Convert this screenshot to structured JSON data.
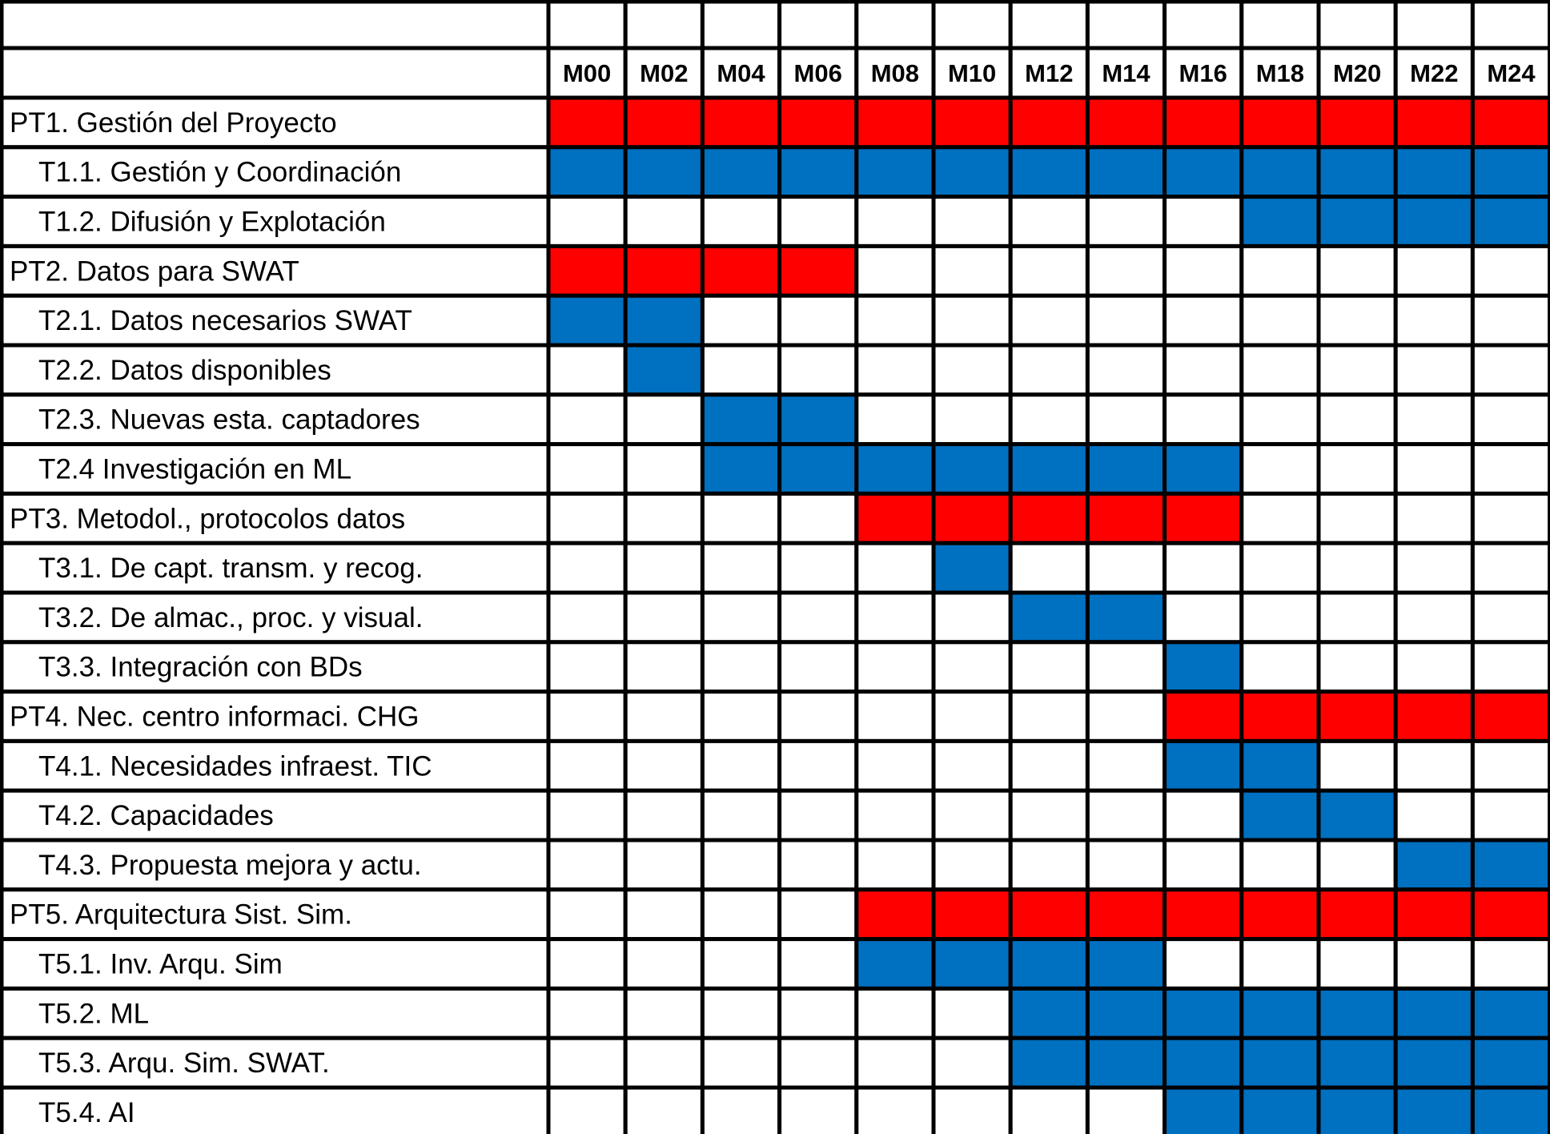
{
  "chart_data": {
    "type": "table",
    "columns": [
      "M00",
      "M02",
      "M04",
      "M06",
      "M08",
      "M10",
      "M12",
      "M14",
      "M16",
      "M18",
      "M20",
      "M22",
      "M24"
    ],
    "colors": {
      "package": "#ff0000",
      "task": "#0070c0",
      "empty": "#ffffff",
      "grid": "#000000"
    },
    "rows": [
      {
        "label": "PT1. Gestión del Proyecto",
        "level": "package",
        "active": [
          "M00",
          "M02",
          "M04",
          "M06",
          "M08",
          "M10",
          "M12",
          "M14",
          "M16",
          "M18",
          "M20",
          "M22",
          "M24"
        ]
      },
      {
        "label": "T1.1. Gestión y Coordinación",
        "level": "task",
        "active": [
          "M00",
          "M02",
          "M04",
          "M06",
          "M08",
          "M10",
          "M12",
          "M14",
          "M16",
          "M18",
          "M20",
          "M22",
          "M24"
        ]
      },
      {
        "label": "T1.2. Difusión y Explotación",
        "level": "task",
        "active": [
          "M18",
          "M20",
          "M22",
          "M24"
        ]
      },
      {
        "label": "PT2. Datos para SWAT",
        "level": "package",
        "active": [
          "M00",
          "M02",
          "M04",
          "M06"
        ]
      },
      {
        "label": "T2.1. Datos necesarios SWAT",
        "level": "task",
        "active": [
          "M00",
          "M02"
        ]
      },
      {
        "label": "T2.2. Datos disponibles",
        "level": "task",
        "active": [
          "M02"
        ]
      },
      {
        "label": "T2.3. Nuevas esta. captadores",
        "level": "task",
        "active": [
          "M04",
          "M06"
        ]
      },
      {
        "label": "T2.4 Investigación en ML",
        "level": "task",
        "active": [
          "M04",
          "M06",
          "M08",
          "M10",
          "M12",
          "M14",
          "M16"
        ]
      },
      {
        "label": "PT3. Metodol., protocolos datos",
        "level": "package",
        "active": [
          "M08",
          "M10",
          "M12",
          "M14",
          "M16"
        ]
      },
      {
        "label": "T3.1. De capt. transm. y recog.",
        "level": "task",
        "active": [
          "M10"
        ]
      },
      {
        "label": "T3.2. De almac., proc. y visual.",
        "level": "task",
        "active": [
          "M12",
          "M14"
        ]
      },
      {
        "label": "T3.3. Integración con BDs",
        "level": "task",
        "active": [
          "M16"
        ]
      },
      {
        "label": "PT4. Nec. centro informaci. CHG",
        "level": "package",
        "active": [
          "M16",
          "M18",
          "M20",
          "M22",
          "M24"
        ]
      },
      {
        "label": "T4.1. Necesidades infraest. TIC",
        "level": "task",
        "active": [
          "M16",
          "M18"
        ]
      },
      {
        "label": "T4.2. Capacidades",
        "level": "task",
        "active": [
          "M18",
          "M20"
        ]
      },
      {
        "label": "T4.3. Propuesta mejora y actu.",
        "level": "task",
        "active": [
          "M22",
          "M24"
        ]
      },
      {
        "label": "PT5. Arquitectura Sist. Sim.",
        "level": "package",
        "active": [
          "M08",
          "M10",
          "M12",
          "M14",
          "M16",
          "M18",
          "M20",
          "M22",
          "M24"
        ]
      },
      {
        "label": "T5.1. Inv. Arqu. Sim",
        "level": "task",
        "active": [
          "M08",
          "M10",
          "M12",
          "M14"
        ]
      },
      {
        "label": "T5.2. ML",
        "level": "task",
        "active": [
          "M12",
          "M14",
          "M16",
          "M18",
          "M20",
          "M22",
          "M24"
        ]
      },
      {
        "label": "T5.3. Arqu. Sim. SWAT.",
        "level": "task",
        "active": [
          "M12",
          "M14",
          "M16",
          "M18",
          "M20",
          "M22",
          "M24"
        ]
      },
      {
        "label": "T5.4. AI",
        "level": "task",
        "active": [
          "M16",
          "M18",
          "M20",
          "M22",
          "M24"
        ]
      }
    ]
  }
}
